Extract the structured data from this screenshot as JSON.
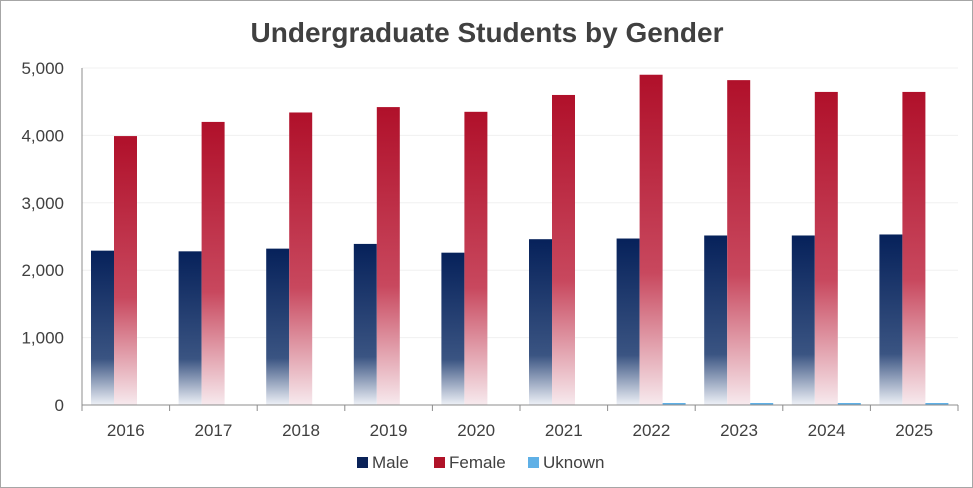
{
  "chart_data": {
    "type": "bar",
    "title": "Undergraduate Students by Gender",
    "xlabel": "",
    "ylabel": "",
    "categories": [
      "2016",
      "2017",
      "2018",
      "2019",
      "2020",
      "2021",
      "2022",
      "2023",
      "2024",
      "2025"
    ],
    "series": [
      {
        "name": "Male",
        "color": "#0a2258",
        "values": [
          2290,
          2280,
          2320,
          2390,
          2260,
          2460,
          2470,
          2515,
          2515,
          2530
        ]
      },
      {
        "name": "Female",
        "color": "#b01228",
        "values": [
          3990,
          4200,
          4340,
          4420,
          4350,
          4600,
          4900,
          4820,
          4645,
          4645
        ]
      },
      {
        "name": "Uknown",
        "color": "#5fb0e6",
        "values": [
          0,
          0,
          0,
          0,
          0,
          0,
          15,
          15,
          15,
          15
        ]
      }
    ],
    "ylim": [
      0,
      5000
    ],
    "yticks": [
      "0",
      "1,000",
      "2,000",
      "3,000",
      "4,000",
      "5,000"
    ],
    "grid": true,
    "legend": "bottom"
  }
}
